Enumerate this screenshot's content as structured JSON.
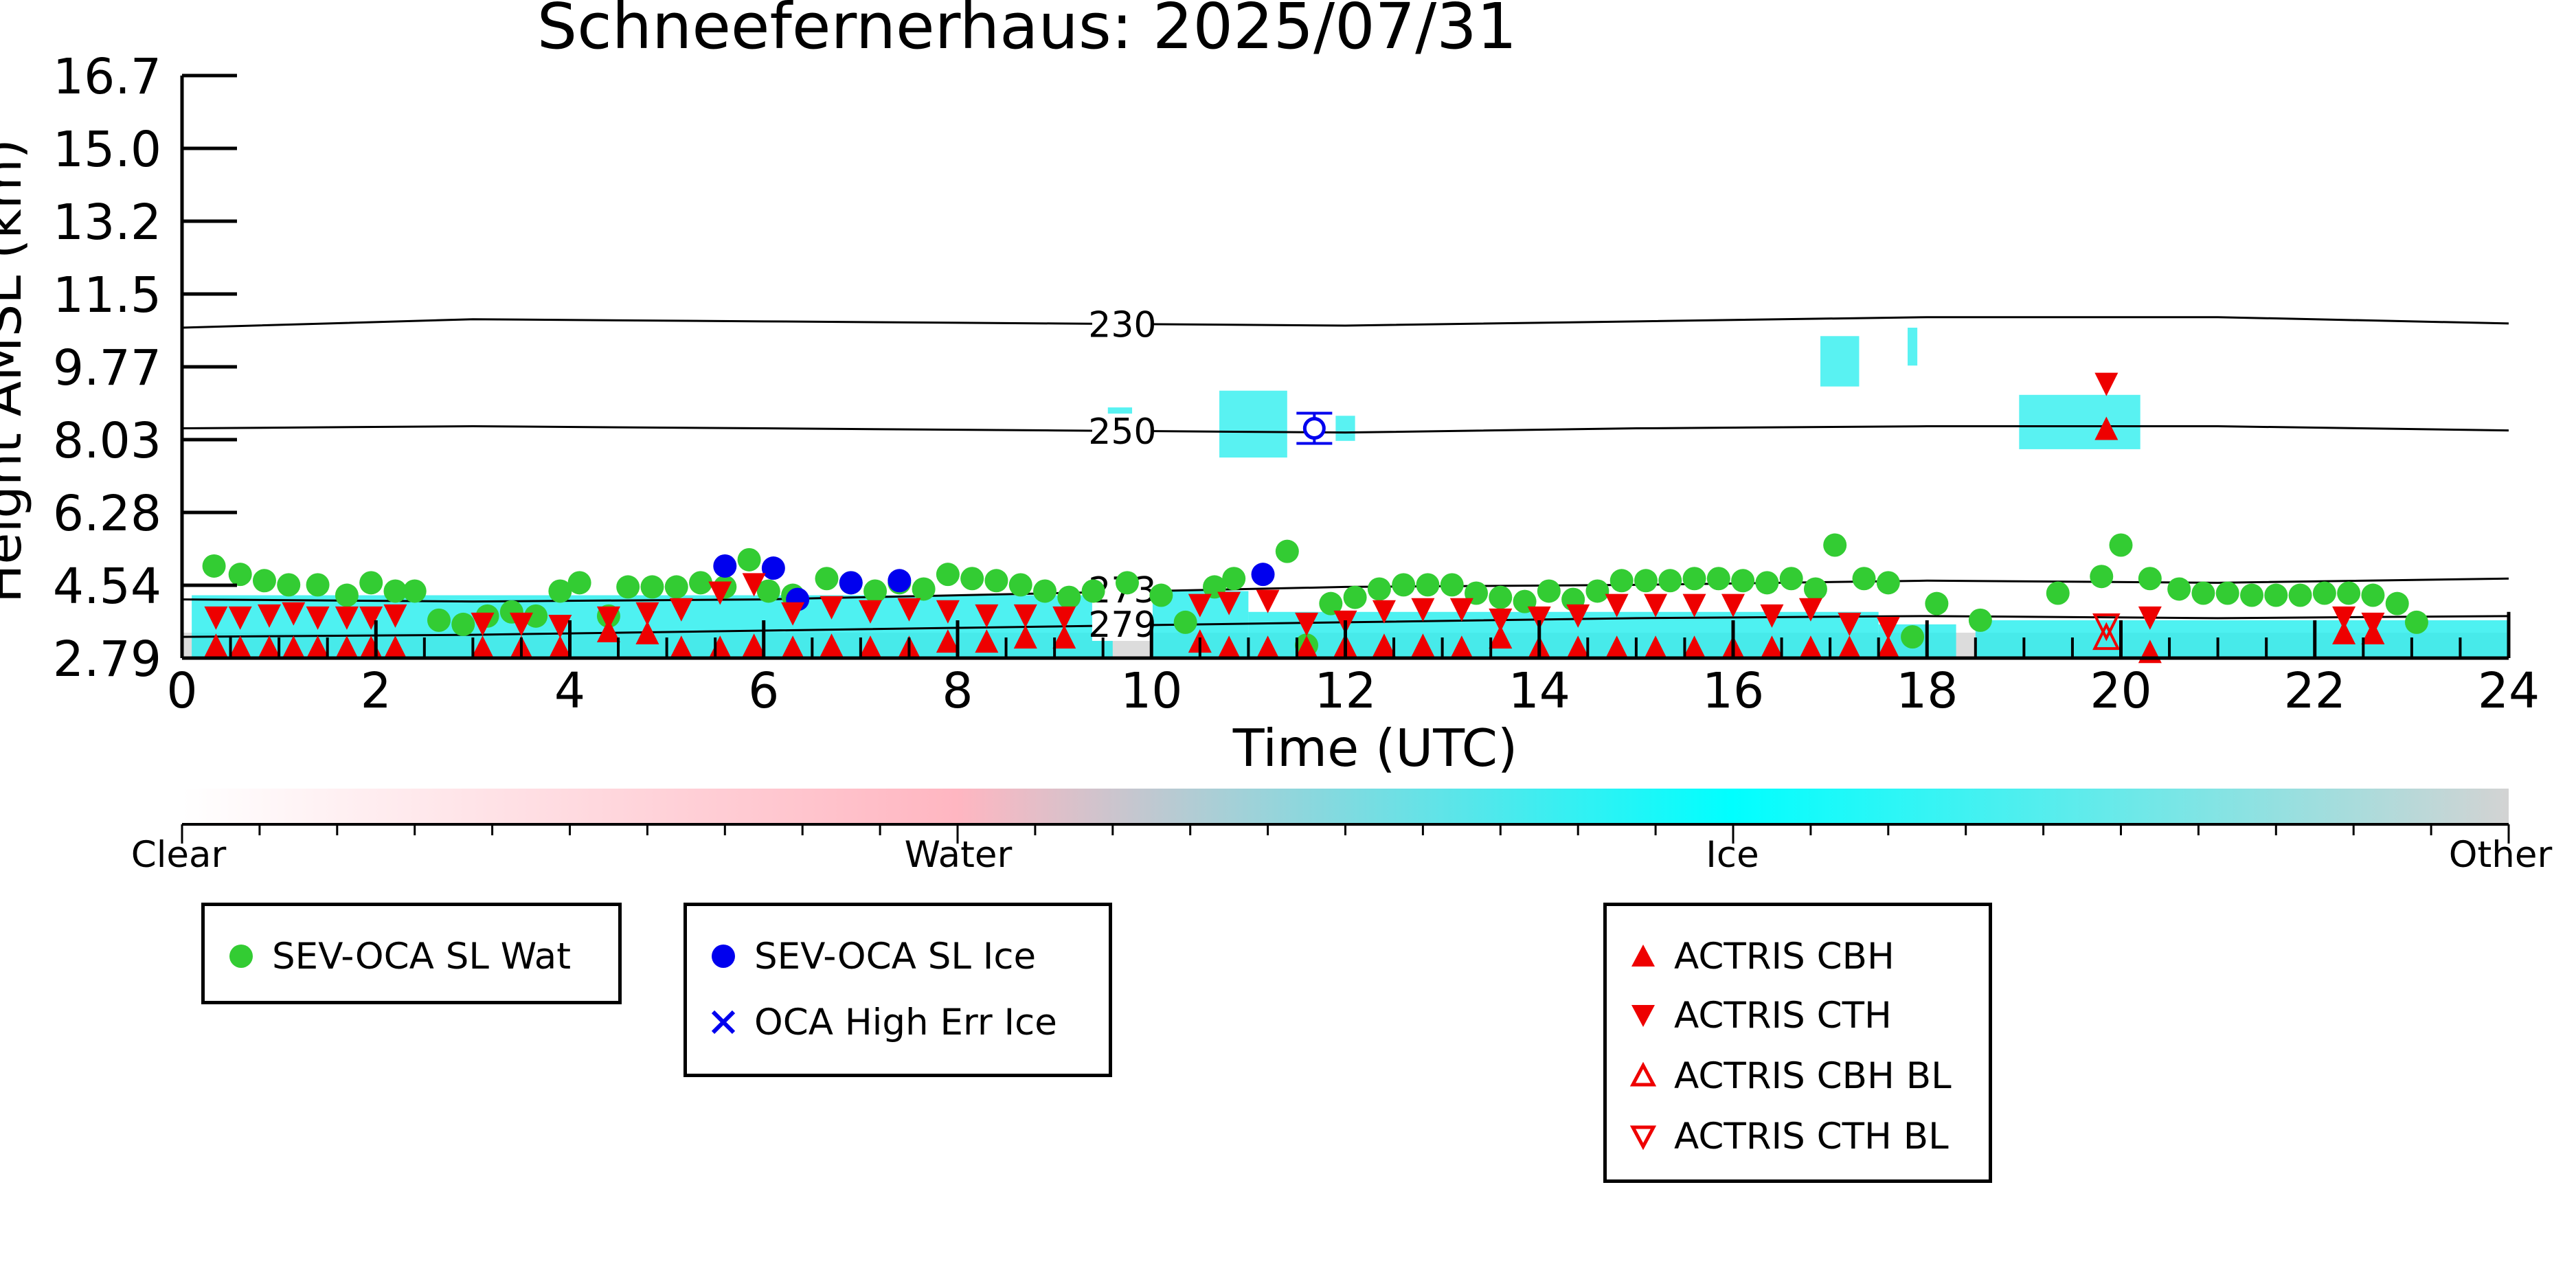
{
  "chart_data": {
    "type": "scatter",
    "title": "Schneefernerhaus: 2025/07/31",
    "xlabel": "Time (UTC)",
    "ylabel": "Height AMSL (km)",
    "xlim": [
      0,
      24
    ],
    "ylim": [
      2.79,
      16.7
    ],
    "x_ticks": [
      "0",
      "2",
      "4",
      "6",
      "8",
      "10",
      "12",
      "14",
      "16",
      "18",
      "20",
      "22",
      "24"
    ],
    "y_ticks": [
      "2.79",
      "4.54",
      "6.28",
      "8.03",
      "9.77",
      "11.5",
      "13.2",
      "15.0",
      "16.7"
    ],
    "grid": false,
    "colorbar": {
      "labels": [
        "Clear",
        "Water",
        "Ice",
        "Other"
      ],
      "colors": [
        "#ffffff",
        "#ffb6c1",
        "#00ffff",
        "#d3d3d3"
      ]
    },
    "isotherms": [
      {
        "label": "230",
        "x": [
          0,
          3,
          6,
          9,
          12,
          15,
          18,
          21,
          24
        ],
        "y": [
          10.7,
          10.9,
          10.85,
          10.8,
          10.75,
          10.85,
          10.95,
          10.95,
          10.8
        ]
      },
      {
        "label": "250",
        "x": [
          0,
          3,
          6,
          9,
          12,
          15,
          18,
          21,
          24
        ],
        "y": [
          8.3,
          8.35,
          8.3,
          8.25,
          8.2,
          8.3,
          8.35,
          8.35,
          8.25
        ]
      },
      {
        "label": "273",
        "x": [
          0,
          3,
          6,
          9,
          12,
          15,
          18,
          21,
          24
        ],
        "y": [
          4.2,
          4.15,
          4.2,
          4.35,
          4.5,
          4.55,
          4.65,
          4.6,
          4.7
        ]
      },
      {
        "label": "279",
        "x": [
          0,
          3,
          6,
          9,
          12,
          15,
          18,
          21,
          24
        ],
        "y": [
          3.3,
          3.35,
          3.45,
          3.55,
          3.65,
          3.75,
          3.8,
          3.75,
          3.8
        ]
      }
    ],
    "series": [
      {
        "name": "SEV-OCA SL Wat",
        "color": "#33cc33",
        "marker": "circle",
        "points": [
          [
            0.33,
            5.0
          ],
          [
            0.6,
            4.8
          ],
          [
            0.85,
            4.65
          ],
          [
            1.1,
            4.55
          ],
          [
            1.4,
            4.55
          ],
          [
            1.7,
            4.3
          ],
          [
            1.95,
            4.6
          ],
          [
            2.2,
            4.4
          ],
          [
            2.4,
            4.4
          ],
          [
            2.65,
            3.7
          ],
          [
            2.9,
            3.6
          ],
          [
            3.15,
            3.8
          ],
          [
            3.4,
            3.9
          ],
          [
            3.65,
            3.8
          ],
          [
            3.9,
            4.4
          ],
          [
            4.1,
            4.6
          ],
          [
            4.4,
            3.8
          ],
          [
            4.6,
            4.5
          ],
          [
            4.85,
            4.5
          ],
          [
            5.1,
            4.5
          ],
          [
            5.35,
            4.6
          ],
          [
            5.6,
            4.5
          ],
          [
            5.85,
            5.15
          ],
          [
            6.05,
            4.4
          ],
          [
            6.3,
            4.3
          ],
          [
            6.65,
            4.7
          ],
          [
            6.9,
            4.6
          ],
          [
            7.15,
            4.4
          ],
          [
            7.4,
            4.6
          ],
          [
            7.65,
            4.45
          ],
          [
            7.9,
            4.8
          ],
          [
            8.15,
            4.7
          ],
          [
            8.4,
            4.65
          ],
          [
            8.65,
            4.55
          ],
          [
            8.9,
            4.4
          ],
          [
            9.15,
            4.25
          ],
          [
            9.4,
            4.4
          ],
          [
            9.75,
            4.6
          ],
          [
            10.1,
            4.3
          ],
          [
            10.35,
            3.65
          ],
          [
            10.65,
            4.5
          ],
          [
            10.85,
            4.7
          ],
          [
            11.4,
            5.35
          ],
          [
            11.6,
            3.1
          ],
          [
            11.85,
            4.1
          ],
          [
            12.1,
            4.25
          ],
          [
            12.35,
            4.45
          ],
          [
            12.6,
            4.55
          ],
          [
            12.85,
            4.55
          ],
          [
            13.1,
            4.55
          ],
          [
            13.35,
            4.35
          ],
          [
            13.6,
            4.25
          ],
          [
            13.85,
            4.15
          ],
          [
            14.1,
            4.4
          ],
          [
            14.35,
            4.2
          ],
          [
            14.6,
            4.4
          ],
          [
            14.85,
            4.65
          ],
          [
            15.1,
            4.65
          ],
          [
            15.35,
            4.65
          ],
          [
            15.6,
            4.7
          ],
          [
            15.85,
            4.7
          ],
          [
            16.1,
            4.65
          ],
          [
            16.35,
            4.6
          ],
          [
            16.6,
            4.7
          ],
          [
            16.85,
            4.45
          ],
          [
            17.05,
            5.5
          ],
          [
            17.35,
            4.7
          ],
          [
            17.6,
            4.6
          ],
          [
            17.85,
            3.3
          ],
          [
            18.1,
            4.1
          ],
          [
            18.55,
            3.7
          ],
          [
            19.35,
            4.35
          ],
          [
            19.8,
            4.75
          ],
          [
            20.0,
            5.5
          ],
          [
            20.3,
            4.7
          ],
          [
            20.6,
            4.45
          ],
          [
            20.85,
            4.35
          ],
          [
            21.1,
            4.35
          ],
          [
            21.35,
            4.3
          ],
          [
            21.6,
            4.3
          ],
          [
            21.85,
            4.3
          ],
          [
            22.1,
            4.35
          ],
          [
            22.35,
            4.35
          ],
          [
            22.6,
            4.3
          ],
          [
            22.85,
            4.1
          ],
          [
            23.05,
            3.65
          ]
        ]
      },
      {
        "name": "SEV-OCA SL Ice",
        "color": "#0000ee",
        "marker": "circle",
        "points": [
          [
            5.6,
            5.0
          ],
          [
            6.1,
            4.95
          ],
          [
            6.35,
            4.2
          ],
          [
            6.9,
            4.6
          ],
          [
            7.4,
            4.65
          ],
          [
            11.15,
            4.8
          ]
        ]
      },
      {
        "name": "OCA High Err Ice",
        "color": "#0000ee",
        "marker": "x",
        "points": []
      },
      {
        "name": "ACTRIS CBH",
        "color": "#ee0000",
        "marker": "triangle-up",
        "points": [
          [
            0.35,
            3.1
          ],
          [
            0.6,
            3.05
          ],
          [
            0.9,
            3.05
          ],
          [
            1.15,
            3.05
          ],
          [
            1.4,
            3.05
          ],
          [
            1.7,
            3.05
          ],
          [
            1.95,
            3.05
          ],
          [
            2.2,
            3.05
          ],
          [
            3.1,
            3.05
          ],
          [
            3.5,
            3.05
          ],
          [
            3.9,
            3.05
          ],
          [
            4.4,
            3.45
          ],
          [
            4.8,
            3.4
          ],
          [
            5.15,
            3.05
          ],
          [
            5.55,
            3.05
          ],
          [
            5.9,
            3.1
          ],
          [
            6.3,
            3.05
          ],
          [
            6.7,
            3.1
          ],
          [
            7.1,
            3.05
          ],
          [
            7.5,
            3.05
          ],
          [
            7.9,
            3.2
          ],
          [
            8.3,
            3.2
          ],
          [
            8.7,
            3.3
          ],
          [
            9.1,
            3.3
          ],
          [
            10.5,
            3.2
          ],
          [
            10.8,
            3.05
          ],
          [
            11.2,
            3.05
          ],
          [
            11.6,
            3.05
          ],
          [
            12.0,
            3.1
          ],
          [
            12.4,
            3.1
          ],
          [
            12.8,
            3.1
          ],
          [
            13.2,
            3.05
          ],
          [
            13.6,
            3.3
          ],
          [
            14.0,
            3.05
          ],
          [
            14.4,
            3.05
          ],
          [
            14.8,
            3.05
          ],
          [
            15.2,
            3.05
          ],
          [
            15.6,
            3.05
          ],
          [
            16.0,
            3.05
          ],
          [
            16.4,
            3.05
          ],
          [
            16.8,
            3.05
          ],
          [
            17.2,
            3.05
          ],
          [
            17.6,
            3.05
          ],
          [
            19.85,
            8.3
          ],
          [
            20.3,
            2.95
          ],
          [
            22.3,
            3.4
          ],
          [
            22.6,
            3.4
          ]
        ]
      },
      {
        "name": "ACTRIS CTH",
        "color": "#ee0000",
        "marker": "triangle-down",
        "points": [
          [
            0.35,
            3.75
          ],
          [
            0.6,
            3.75
          ],
          [
            0.9,
            3.8
          ],
          [
            1.15,
            3.85
          ],
          [
            1.4,
            3.75
          ],
          [
            1.7,
            3.75
          ],
          [
            1.95,
            3.75
          ],
          [
            2.2,
            3.8
          ],
          [
            3.1,
            3.6
          ],
          [
            3.5,
            3.6
          ],
          [
            3.9,
            3.55
          ],
          [
            4.4,
            3.75
          ],
          [
            4.8,
            3.85
          ],
          [
            5.15,
            3.95
          ],
          [
            5.55,
            4.35
          ],
          [
            5.9,
            4.55
          ],
          [
            6.3,
            3.85
          ],
          [
            6.7,
            4.0
          ],
          [
            7.1,
            3.9
          ],
          [
            7.5,
            3.95
          ],
          [
            7.9,
            3.9
          ],
          [
            8.3,
            3.8
          ],
          [
            8.7,
            3.8
          ],
          [
            9.1,
            3.75
          ],
          [
            10.5,
            4.05
          ],
          [
            10.8,
            4.1
          ],
          [
            11.2,
            4.15
          ],
          [
            11.6,
            3.6
          ],
          [
            12.0,
            3.65
          ],
          [
            12.4,
            3.9
          ],
          [
            12.8,
            3.95
          ],
          [
            13.2,
            3.95
          ],
          [
            13.6,
            3.7
          ],
          [
            14.0,
            3.75
          ],
          [
            14.4,
            3.8
          ],
          [
            14.8,
            4.05
          ],
          [
            15.2,
            4.05
          ],
          [
            15.6,
            4.05
          ],
          [
            16.0,
            4.05
          ],
          [
            16.4,
            3.8
          ],
          [
            16.8,
            3.95
          ],
          [
            17.2,
            3.6
          ],
          [
            17.6,
            3.5
          ],
          [
            19.85,
            9.35
          ],
          [
            20.3,
            3.75
          ],
          [
            22.3,
            3.75
          ],
          [
            22.6,
            3.6
          ]
        ]
      },
      {
        "name": "ACTRIS CBH BL",
        "color": "#ee0000",
        "marker": "triangle-up-open",
        "points": [
          [
            19.85,
            3.3
          ]
        ]
      },
      {
        "name": "ACTRIS CTH BL",
        "color": "#ee0000",
        "marker": "triangle-down-open",
        "points": [
          [
            19.85,
            3.55
          ]
        ]
      }
    ],
    "legend": [
      {
        "label": "SEV-OCA SL Wat",
        "marker": "circle",
        "color": "#33cc33"
      },
      {
        "label": "SEV-OCA SL Ice",
        "marker": "circle",
        "color": "#0000ee"
      },
      {
        "label": "OCA High Err Ice",
        "marker": "x",
        "color": "#0000ee"
      },
      {
        "label": "ACTRIS CBH",
        "marker": "triangle-up",
        "color": "#ee0000"
      },
      {
        "label": "ACTRIS CTH",
        "marker": "triangle-down",
        "color": "#ee0000"
      },
      {
        "label": "ACTRIS CBH BL",
        "marker": "triangle-up-open",
        "color": "#ee0000"
      },
      {
        "label": "ACTRIS CTH BL",
        "marker": "triangle-down-open",
        "color": "#ee0000"
      }
    ]
  }
}
